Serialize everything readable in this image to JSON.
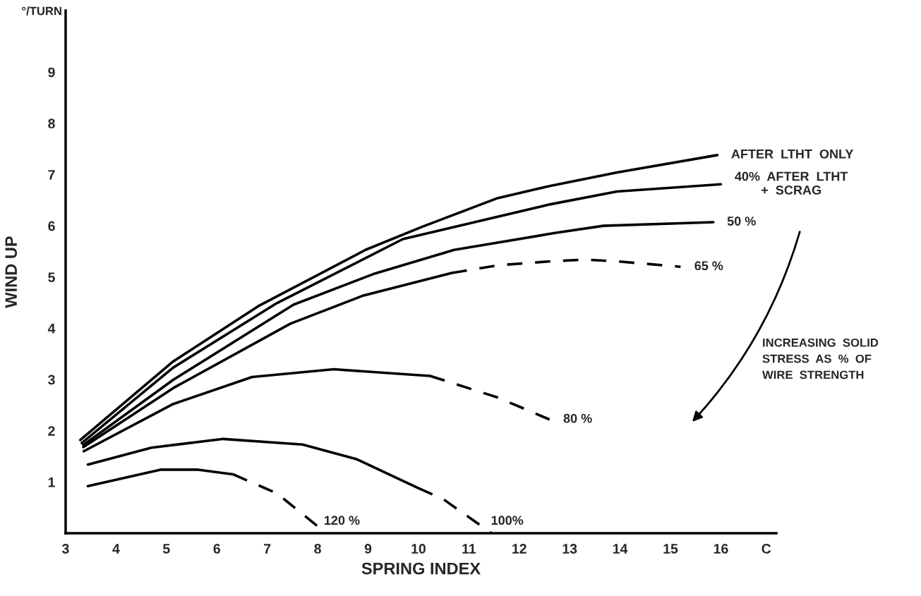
{
  "chart_data": {
    "type": "line",
    "xlabel": "SPRING INDEX",
    "ylabel": "WIND UP",
    "xlim": [
      3,
      17.1
    ],
    "xticks": [
      3,
      4,
      5,
      6,
      7,
      8,
      9,
      10,
      11,
      12,
      13,
      14,
      15,
      16,
      {
        "value": 16.9,
        "label": "C"
      }
    ],
    "ylim": [
      0,
      10.2
    ],
    "yticks": [
      1,
      2,
      3,
      4,
      5,
      6,
      7,
      8,
      9
    ],
    "series": [
      {
        "color": "#000000",
        "line_style": "solid",
        "x": [
          3.29,
          5.13,
          6.82,
          8.95,
          10.07,
          11.57,
          12.62,
          13.94,
          15.93
        ],
        "values": [
          1.82,
          3.35,
          4.43,
          5.53,
          5.98,
          6.54,
          6.78,
          7.04,
          7.38
        ]
      },
      {
        "color": "#000000",
        "line_style": "solid",
        "x": [
          3.32,
          5.13,
          7.19,
          9.69,
          12.62,
          13.94,
          16.0
        ],
        "values": [
          1.76,
          3.23,
          4.49,
          5.74,
          6.42,
          6.67,
          6.81
        ]
      },
      {
        "color": "#000000",
        "line_style": "solid",
        "x": [
          3.35,
          5.13,
          7.52,
          9.14,
          10.71,
          12.71,
          13.67,
          15.85
        ],
        "values": [
          1.72,
          2.99,
          4.46,
          5.07,
          5.53,
          5.86,
          6.0,
          6.07
        ]
      },
      {
        "color": "#000000",
        "line_style": "solid",
        "x": [
          3.35,
          5.13,
          7.46,
          8.91,
          10.66
        ],
        "values": [
          1.68,
          2.83,
          4.09,
          4.64,
          5.08
        ]
      },
      {
        "color": "#000000",
        "line_style": "dashed",
        "x": [
          10.66,
          11.58,
          12.67,
          13.32,
          14.02,
          15.2
        ],
        "values": [
          5.08,
          5.23,
          5.31,
          5.34,
          5.3,
          5.2
        ]
      },
      {
        "color": "#000000",
        "line_style": "solid",
        "x": [
          3.36,
          5.13,
          6.7,
          8.32,
          10.23
        ],
        "values": [
          1.6,
          2.52,
          3.05,
          3.2,
          3.07
        ]
      },
      {
        "color": "#000000",
        "line_style": "dashed",
        "x": [
          10.23,
          11.57,
          12.6
        ],
        "values": [
          3.07,
          2.65,
          2.22
        ]
      },
      {
        "color": "#000000",
        "line_style": "solid",
        "x": [
          3.44,
          4.7,
          6.13,
          7.7,
          8.76,
          10.0
        ],
        "values": [
          1.34,
          1.67,
          1.84,
          1.73,
          1.45,
          0.88
        ]
      },
      {
        "color": "#000000",
        "line_style": "dashed",
        "x": [
          10.0,
          10.5,
          11.45
        ],
        "values": [
          0.88,
          0.66,
          0
        ]
      },
      {
        "color": "#000000",
        "line_style": "solid",
        "x": [
          3.44,
          4.88,
          5.63,
          6.32
        ],
        "values": [
          0.92,
          1.24,
          1.24,
          1.15
        ]
      },
      {
        "color": "#000000",
        "line_style": "dashed",
        "x": [
          6.32,
          7.19,
          8.17
        ],
        "values": [
          1.15,
          0.78,
          0
        ]
      }
    ],
    "annotations": [
      {
        "text": "AFTER  LTHT  ONLY",
        "x": 15.93,
        "y": 7.38
      },
      {
        "text": "40%  AFTER  LTHT\n+  SCRAG",
        "x": 16.0,
        "y": 6.81
      },
      {
        "text": "50 %",
        "x": 15.85,
        "y": 6.07
      },
      {
        "text": "65 %",
        "x": 15.2,
        "y": 5.2
      },
      {
        "text": "80 %",
        "x": 12.6,
        "y": 2.22
      },
      {
        "text": "100%",
        "x": 11.45,
        "y": 0
      },
      {
        "text": "120 %",
        "x": 8.17,
        "y": 0
      },
      "°/TURN",
      "INCREASING  SOLID\nSTRESS  AS  %  OF\nWIRE  STRENGTH"
    ]
  }
}
